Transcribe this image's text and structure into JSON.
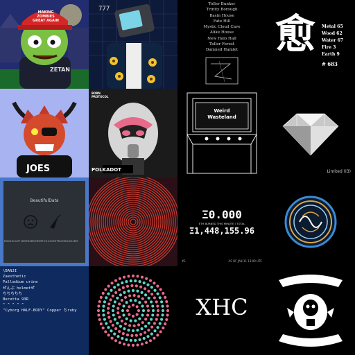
{
  "tiles": {
    "zombie": {
      "hat_line1": "MAKING",
      "hat_line2": "ZOMBIES",
      "hat_line3": "GREAT AGAIN",
      "shirt": "ZETAN"
    },
    "tvhead": {
      "number": "777"
    },
    "locations": {
      "items": [
        "Toller Bunker",
        "Trinity Borough",
        "Basin House",
        "Fate Hill",
        "Mystic Cloud Cave",
        "Alike House",
        "New Halo Hall",
        "Toller Forest",
        "Damned Hamlet"
      ]
    },
    "kanji": {
      "glyph": "愈",
      "stats": [
        "Metal 65",
        "Wood 62",
        "Water 67",
        "Fire 3",
        "Earth 9"
      ],
      "id": "# 683"
    },
    "joes": {
      "shirt": "JOES"
    },
    "polkadot": {
      "brand_line1": "BORN",
      "brand_line2": "PROTOCOL",
      "title": "POLKADOT"
    },
    "arcade": {
      "title_line1": "Weird",
      "title_line2": "Wasteland"
    },
    "diamond": {
      "label": "Limited (I3)"
    },
    "beautifuldata": {
      "title": "BeautifulData",
      "hex": "0x014c1df18596a0569d4fc611928f832b6101204"
    },
    "eth": {
      "value": "Ξ0.000",
      "caption": "ETH BURNED THIS MINUTE / TOTAL",
      "total": "Ξ1,448,155.96",
      "footer_left": "#1",
      "footer_right": "AS OF JAN 11 13:09 UTC"
    },
    "textlist": {
      "lines": [
        "\\BANJI",
        "ℤaesthetic",
        "Palladium urine",
        "ぜんぶ helmetぜ",
        "ちちちちち",
        "Beretta 93R",
        "^ ^ ^ ^ ^",
        "\"Cyborg HALF-BODY\" Copper ちruby"
      ]
    },
    "xhc": {
      "text": "XHC"
    }
  },
  "colors": {
    "zombie_bg": "#1f2a6b",
    "gold": "#d9a400",
    "tv_bg": "#0d1836",
    "periwinkle": "#a7b4f1",
    "pink": "#e86a8a"
  }
}
